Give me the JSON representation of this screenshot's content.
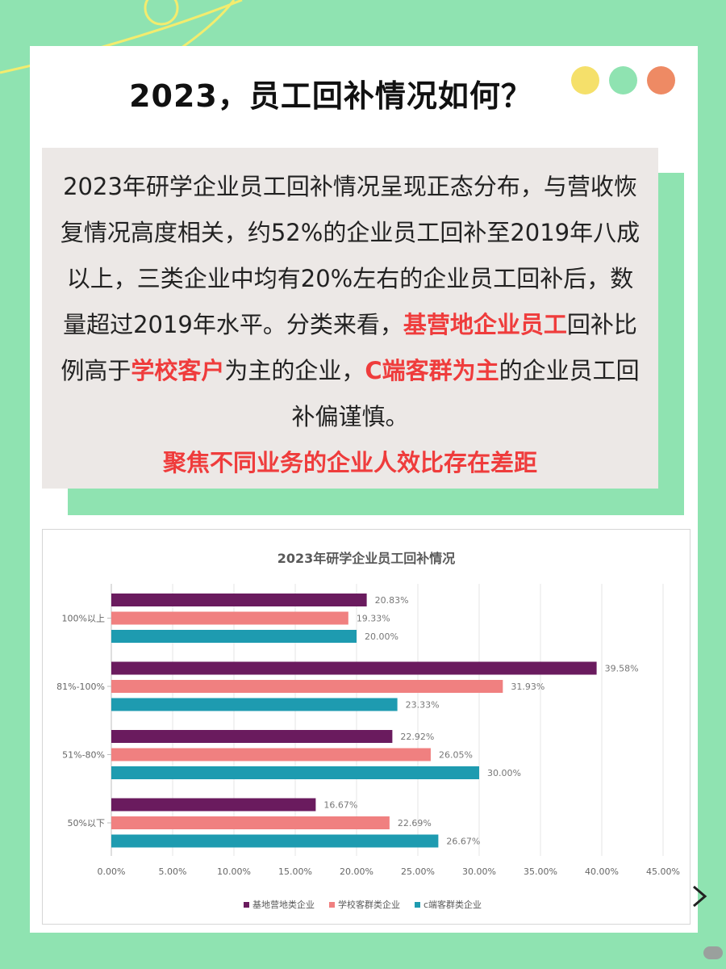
{
  "page": {
    "title": "2023，员工回补情况如何？",
    "dot_colors": [
      "#f5e06a",
      "#8fe3b1",
      "#ee8a64"
    ],
    "background_color": "#8fe3b1",
    "highlight_color": "#ef3c3c"
  },
  "summary": {
    "p1": "2023年研学企业员工回补情况呈现正态分布，与营收恢复情况高度相关，约52%的企业员工回补至2019年八成以上，三类企业中均有20%左右的企业员工回补后，数量超过2019年水平。分类来看，",
    "h1": "基营地企业员工",
    "p2": "回补比例高于",
    "h2": "学校客户",
    "p3": "为主的企业，",
    "h3": "C端客群为主",
    "p4": "的企业员工回补偏谨慎。",
    "focus": "聚焦不同业务的企业人效比存在差距"
  },
  "chart_data": {
    "type": "bar",
    "orientation": "horizontal",
    "title": "2023年研学企业员工回补情况",
    "categories": [
      "100%以上",
      "81%-100%",
      "51%-80%",
      "50%以下"
    ],
    "series": [
      {
        "name": "基地营地类企业",
        "color": "#6a1b5e",
        "values": [
          20.83,
          39.58,
          22.92,
          16.67
        ]
      },
      {
        "name": "学校客群类企业",
        "color": "#f08080",
        "values": [
          19.33,
          31.93,
          26.05,
          22.69
        ]
      },
      {
        "name": "c端客群类企业",
        "color": "#1e9bb0",
        "values": [
          20.0,
          23.33,
          30.0,
          26.67
        ]
      }
    ],
    "value_labels": [
      [
        "20.83%",
        "19.33%",
        "20.00%"
      ],
      [
        "39.58%",
        "31.93%",
        "23.33%"
      ],
      [
        "22.92%",
        "26.05%",
        "30.00%"
      ],
      [
        "16.67%",
        "22.69%",
        "26.67%"
      ]
    ],
    "xlim": [
      0,
      45
    ],
    "xticks": [
      0,
      5,
      10,
      15,
      20,
      25,
      30,
      35,
      40,
      45
    ],
    "xtick_labels": [
      "0.00%",
      "5.00%",
      "10.00%",
      "15.00%",
      "20.00%",
      "25.00%",
      "30.00%",
      "35.00%",
      "40.00%",
      "45.00%"
    ],
    "grid": true,
    "legend_position": "bottom"
  }
}
